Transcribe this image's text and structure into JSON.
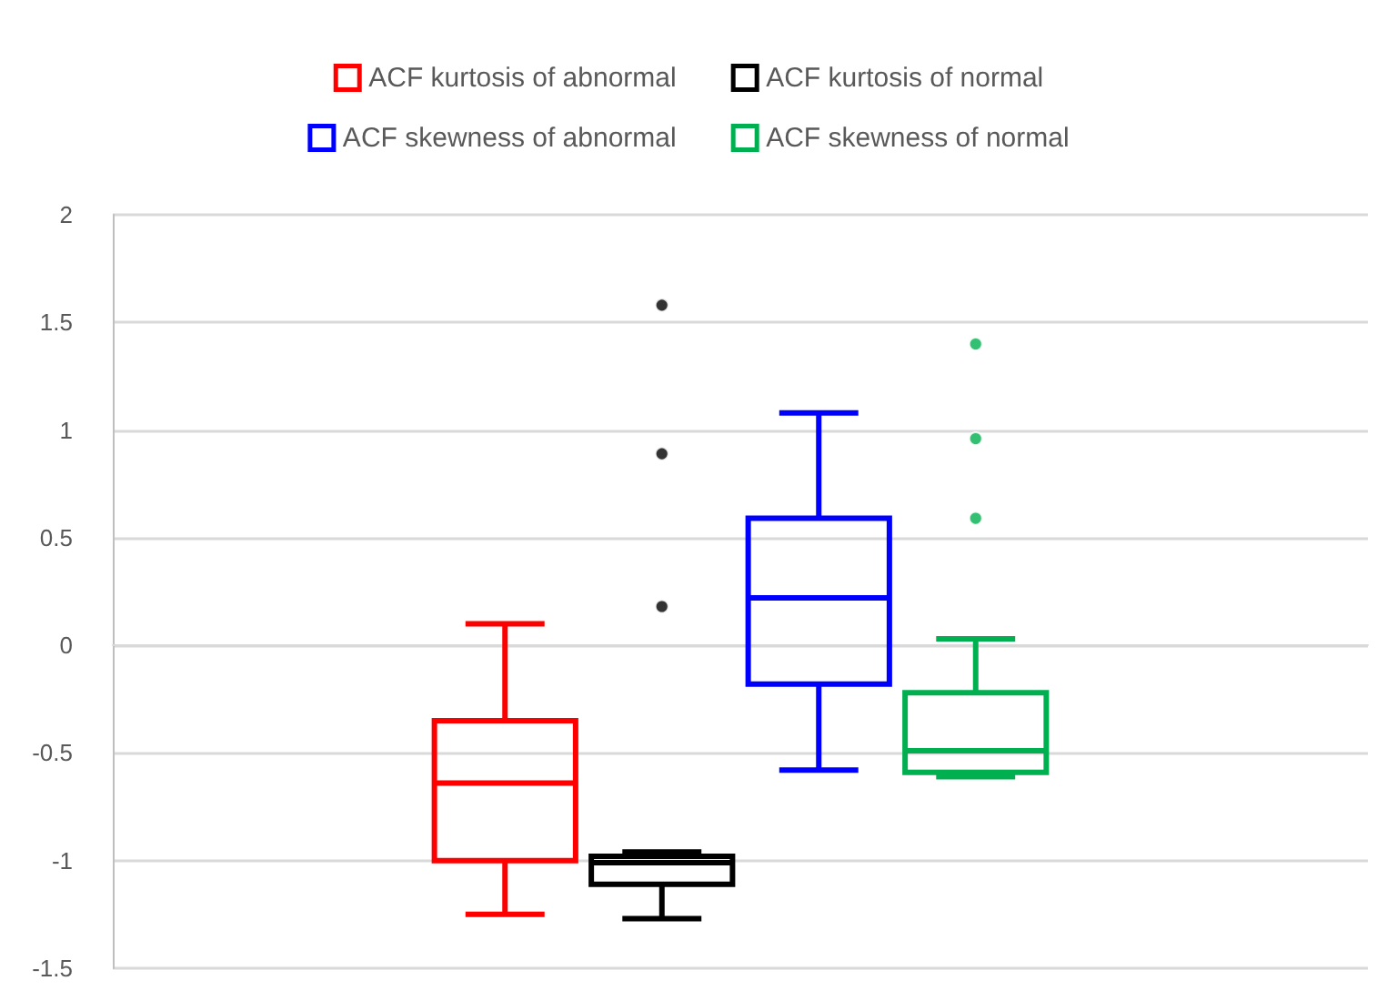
{
  "chart_data": {
    "type": "box",
    "categories": [
      null
    ],
    "ylim": [
      -1.5,
      2
    ],
    "yticks": [
      -1.5,
      -1,
      -0.5,
      0,
      0.5,
      1,
      1.5,
      2
    ],
    "grid": "y",
    "legend": "top",
    "tick_labels": "y",
    "marker": "circle",
    "series": [
      {
        "name": "ACF kurtosis of abnormal",
        "color": "#ff0000",
        "boxes": [
          {
            "low": -1.25,
            "q1": -1.0,
            "median": -0.64,
            "q3": -0.35,
            "high": 0.1
          }
        ]
      },
      {
        "name": "ACF kurtosis of normal",
        "color": "#000000",
        "boxes": [
          {
            "low": -1.27,
            "q1": -1.11,
            "median": -1.01,
            "q3": -0.98,
            "high": -0.96,
            "outliers": [
              0.18,
              0.89,
              1.58
            ]
          }
        ]
      },
      {
        "name": "ACF skewness of abnormal",
        "color": "#0000ff",
        "boxes": [
          {
            "low": -0.58,
            "q1": -0.18,
            "median": 0.22,
            "q3": 0.59,
            "high": 1.08
          }
        ]
      },
      {
        "name": "ACF skewness of normal",
        "color": "#00b050",
        "boxes": [
          {
            "low": -0.61,
            "q1": -0.59,
            "median": -0.49,
            "q3": -0.22,
            "high": 0.03,
            "outliers": [
              0.59,
              0.96,
              1.4
            ]
          }
        ]
      }
    ]
  }
}
